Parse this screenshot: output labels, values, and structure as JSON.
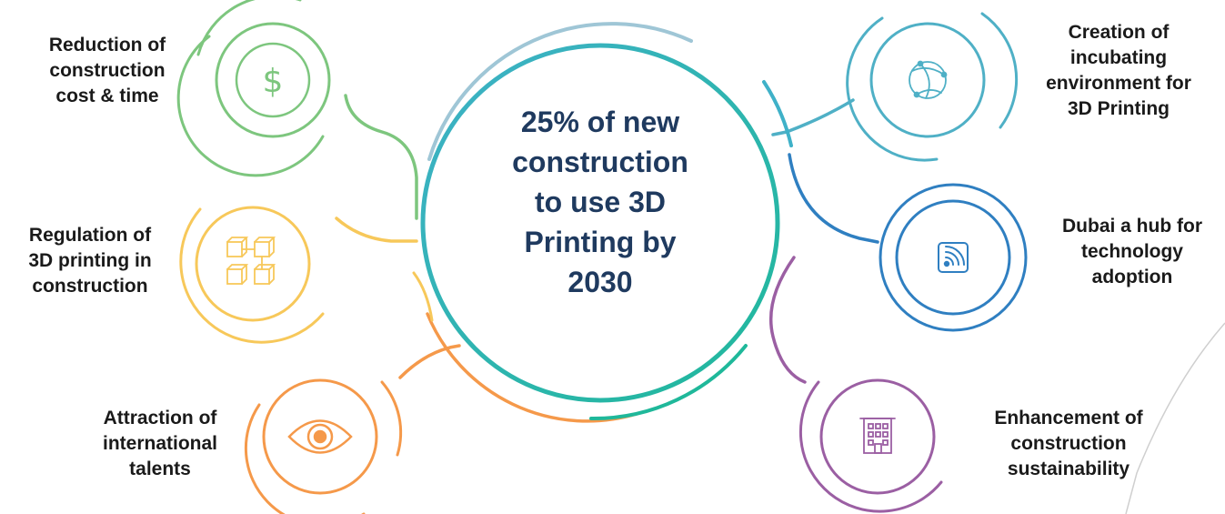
{
  "center": {
    "lines": [
      "25% of new",
      "construction",
      "to use 3D",
      "Printing by",
      "2030"
    ],
    "color": "#1f3a5f"
  },
  "nodes": [
    {
      "id": "cost",
      "icon": "dollar-icon",
      "color": "#7dc67e",
      "label": [
        "Reduction of",
        "construction",
        "cost & time"
      ]
    },
    {
      "id": "regulation",
      "icon": "blocks-icon",
      "color": "#f7c85a",
      "label": [
        "Regulation of",
        "3D printing in",
        "construction"
      ]
    },
    {
      "id": "talents",
      "icon": "eye-icon",
      "color": "#f5994a",
      "label": [
        "Attraction of",
        "international",
        "talents"
      ]
    },
    {
      "id": "incubating",
      "icon": "globe-network-icon",
      "color": "#4fb0c6",
      "label": [
        "Creation of",
        "incubating",
        "environment for",
        "3D Printing"
      ]
    },
    {
      "id": "hub",
      "icon": "signal-icon",
      "color": "#2f7fc1",
      "label": [
        "Dubai a hub for",
        "technology",
        "adoption"
      ]
    },
    {
      "id": "sustainability",
      "icon": "building-icon",
      "color": "#9b5fa3",
      "label": [
        "Enhancement of",
        "construction",
        "sustainability"
      ]
    }
  ]
}
